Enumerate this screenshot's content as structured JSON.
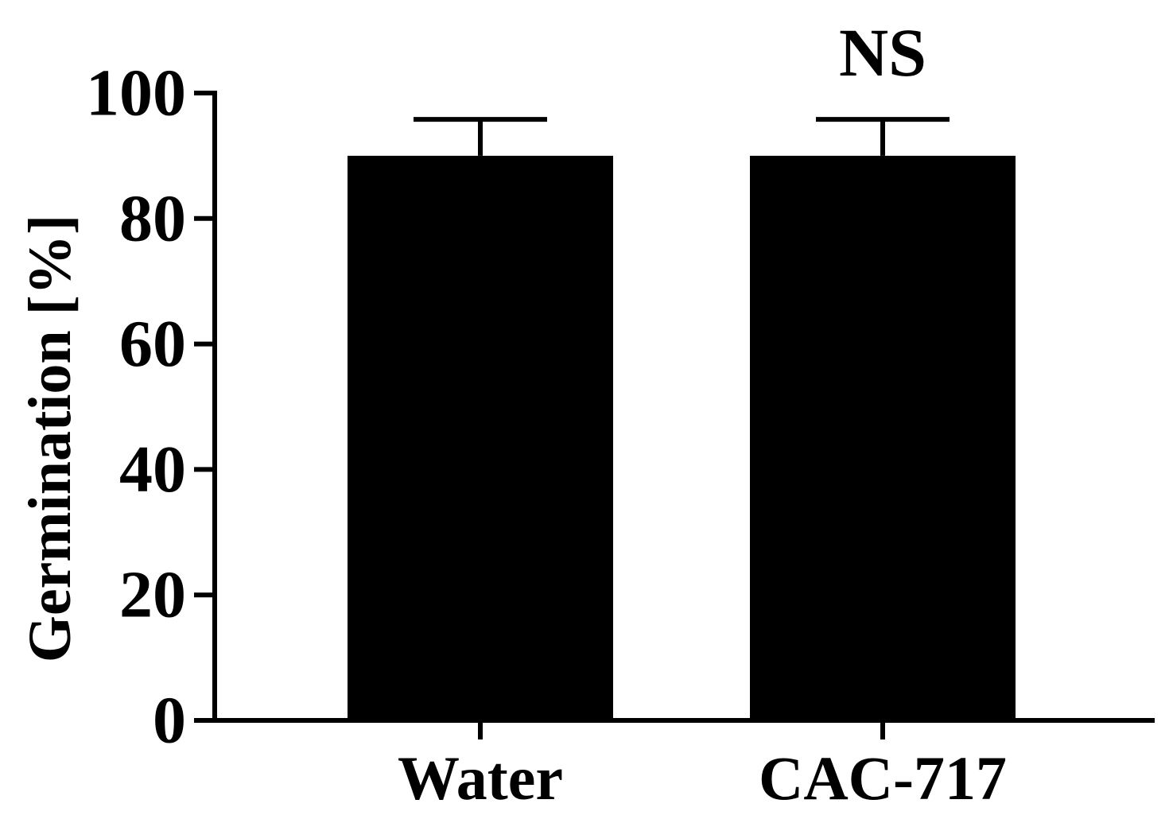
{
  "chart_data": {
    "type": "bar",
    "title": "",
    "xlabel": "",
    "ylabel": "Germination [%]",
    "categories": [
      "Water",
      "CAC-717"
    ],
    "values": [
      90,
      90
    ],
    "error": [
      5.8,
      5.8
    ],
    "ylim": [
      0,
      100
    ],
    "yticks": [
      0,
      20,
      40,
      60,
      80,
      100
    ],
    "annotations": [
      {
        "category": "CAC-717",
        "text": "NS"
      }
    ],
    "grid": false,
    "legend": "none",
    "bar_color": "#000000"
  }
}
